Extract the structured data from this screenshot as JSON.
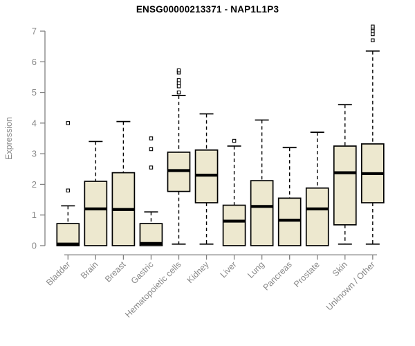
{
  "title": "ENSG00000213371 - NAP1L1P3",
  "chart_data": {
    "type": "boxplot",
    "title": "ENSG00000213371 - NAP1L1P3",
    "xlabel": "",
    "ylabel": "Expression",
    "ylim": [
      0,
      7
    ],
    "yticks": [
      0,
      1,
      2,
      3,
      4,
      5,
      6,
      7
    ],
    "grid": false,
    "legend": "none",
    "categories": [
      "Bladder",
      "Brain",
      "Breast",
      "Gastric",
      "Hematopoietic cells",
      "Kidney",
      "Liver",
      "Lung",
      "Pancreas",
      "Prostate",
      "Skin",
      "Unknown / Other"
    ],
    "boxes": [
      {
        "category": "Bladder",
        "whisker_low": 0,
        "q1": 0,
        "median": 0.05,
        "q3": 0.72,
        "whisker_high": 1.3,
        "outliers": [
          1.8,
          4.0
        ]
      },
      {
        "category": "Brain",
        "whisker_low": 0,
        "q1": 0,
        "median": 1.2,
        "q3": 2.1,
        "whisker_high": 3.4,
        "outliers": []
      },
      {
        "category": "Breast",
        "whisker_low": 0,
        "q1": 0,
        "median": 1.18,
        "q3": 2.38,
        "whisker_high": 4.05,
        "outliers": []
      },
      {
        "category": "Gastric",
        "whisker_low": 0,
        "q1": 0,
        "median": 0.07,
        "q3": 0.72,
        "whisker_high": 1.1,
        "outliers": [
          2.55,
          3.15,
          3.5
        ]
      },
      {
        "category": "Hematopoietic cells",
        "whisker_low": 0.05,
        "q1": 1.77,
        "median": 2.45,
        "q3": 3.05,
        "whisker_high": 4.9,
        "outliers": [
          5.0,
          5.2,
          5.3,
          5.4,
          5.65,
          5.72
        ]
      },
      {
        "category": "Kidney",
        "whisker_low": 0.05,
        "q1": 1.4,
        "median": 2.3,
        "q3": 3.12,
        "whisker_high": 4.3,
        "outliers": []
      },
      {
        "category": "Liver",
        "whisker_low": 0,
        "q1": 0,
        "median": 0.8,
        "q3": 1.32,
        "whisker_high": 3.25,
        "outliers": [
          3.42
        ]
      },
      {
        "category": "Lung",
        "whisker_low": 0,
        "q1": 0,
        "median": 1.28,
        "q3": 2.12,
        "whisker_high": 4.1,
        "outliers": []
      },
      {
        "category": "Pancreas",
        "whisker_low": 0,
        "q1": 0,
        "median": 0.83,
        "q3": 1.55,
        "whisker_high": 3.2,
        "outliers": []
      },
      {
        "category": "Prostate",
        "whisker_low": 0,
        "q1": 0,
        "median": 1.2,
        "q3": 1.88,
        "whisker_high": 3.7,
        "outliers": []
      },
      {
        "category": "Skin",
        "whisker_low": 0.05,
        "q1": 0.68,
        "median": 2.38,
        "q3": 3.25,
        "whisker_high": 4.6,
        "outliers": []
      },
      {
        "category": "Unknown / Other",
        "whisker_low": 0.05,
        "q1": 1.4,
        "median": 2.35,
        "q3": 3.32,
        "whisker_high": 6.35,
        "outliers": [
          6.7,
          6.9,
          7.0,
          7.1,
          7.15
        ]
      }
    ]
  },
  "colors": {
    "background": "#FFFFFF",
    "box_fill": "#EDE8CF",
    "box_stroke": "#000000",
    "median": "#000000",
    "whisker": "#000000",
    "axis": "#808080",
    "tick_label": "#888888",
    "title": "#000000"
  }
}
